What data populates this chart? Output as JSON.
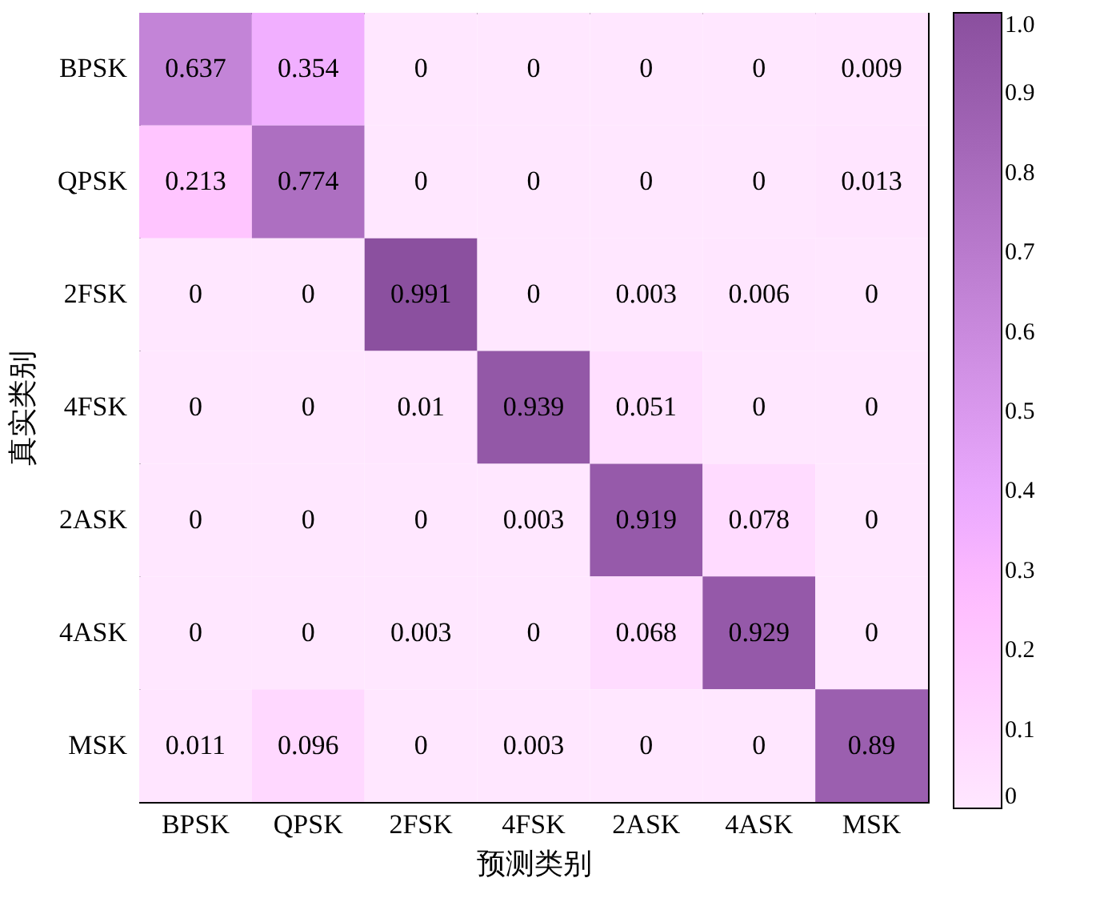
{
  "chart_data": {
    "type": "heatmap",
    "xlabel": "预测类别",
    "ylabel": "真实类别",
    "categories": [
      "BPSK",
      "QPSK",
      "2FSK",
      "4FSK",
      "2ASK",
      "4ASK",
      "MSK"
    ],
    "y_categories": [
      "BPSK",
      "QPSK",
      "2FSK",
      "4FSK",
      "2ASK",
      "4ASK",
      "MSK"
    ],
    "cells": [
      [
        0.637,
        0.354,
        0,
        0,
        0,
        0,
        0.009
      ],
      [
        0.213,
        0.774,
        0,
        0,
        0,
        0,
        0.013
      ],
      [
        0,
        0,
        0.991,
        0,
        0.003,
        0.006,
        0
      ],
      [
        0,
        0,
        0.01,
        0.939,
        0.051,
        0,
        0
      ],
      [
        0,
        0,
        0,
        0.003,
        0.919,
        0.078,
        0
      ],
      [
        0,
        0,
        0.003,
        0,
        0.068,
        0.929,
        0
      ],
      [
        0.011,
        0.096,
        0,
        0.003,
        0,
        0,
        0.89
      ]
    ],
    "data_labels": true,
    "clim": [
      0,
      1
    ],
    "cticks": [
      0,
      0.1,
      0.2,
      0.3,
      0.4,
      0.5,
      0.6,
      0.7,
      0.8,
      0.9,
      {
        "value": 1,
        "label": "1.0"
      }
    ],
    "colors": [
      "#ffffff",
      "#8a4f9e"
    ]
  }
}
